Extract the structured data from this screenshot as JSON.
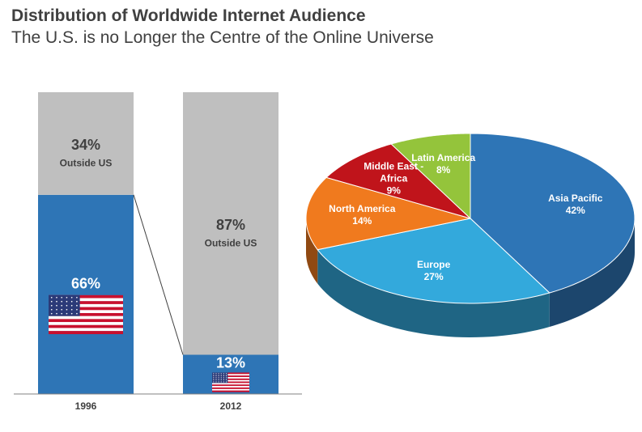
{
  "title": "Distribution of Worldwide Internet Audience",
  "subtitle": "The U.S. is no Longer the Centre of the Online Universe",
  "chart_data": [
    {
      "type": "bar",
      "stacked": true,
      "categories": [
        "1996",
        "2012"
      ],
      "ylim": [
        0,
        100
      ],
      "series": [
        {
          "color": "#2e75b6",
          "values": [
            66,
            13
          ],
          "value_labels": [
            "66%",
            "13%"
          ]
        },
        {
          "name": "Outside US",
          "color": "#bfbfbf",
          "values": [
            34,
            87
          ],
          "value_labels": [
            "34%",
            "87%"
          ]
        }
      ]
    },
    {
      "type": "pie",
      "categories": [
        "Asia Pacific",
        "Europe",
        "North America",
        "Middle East - Africa",
        "Latin America"
      ],
      "values": [
        42,
        27,
        14,
        9,
        8
      ],
      "value_labels": [
        "42%",
        "27%",
        "14%",
        "9%",
        "8%"
      ],
      "colors": [
        "#2e75b6",
        "#33a9dc",
        "#f07a1e",
        "#c0141b",
        "#94c43b"
      ]
    }
  ]
}
